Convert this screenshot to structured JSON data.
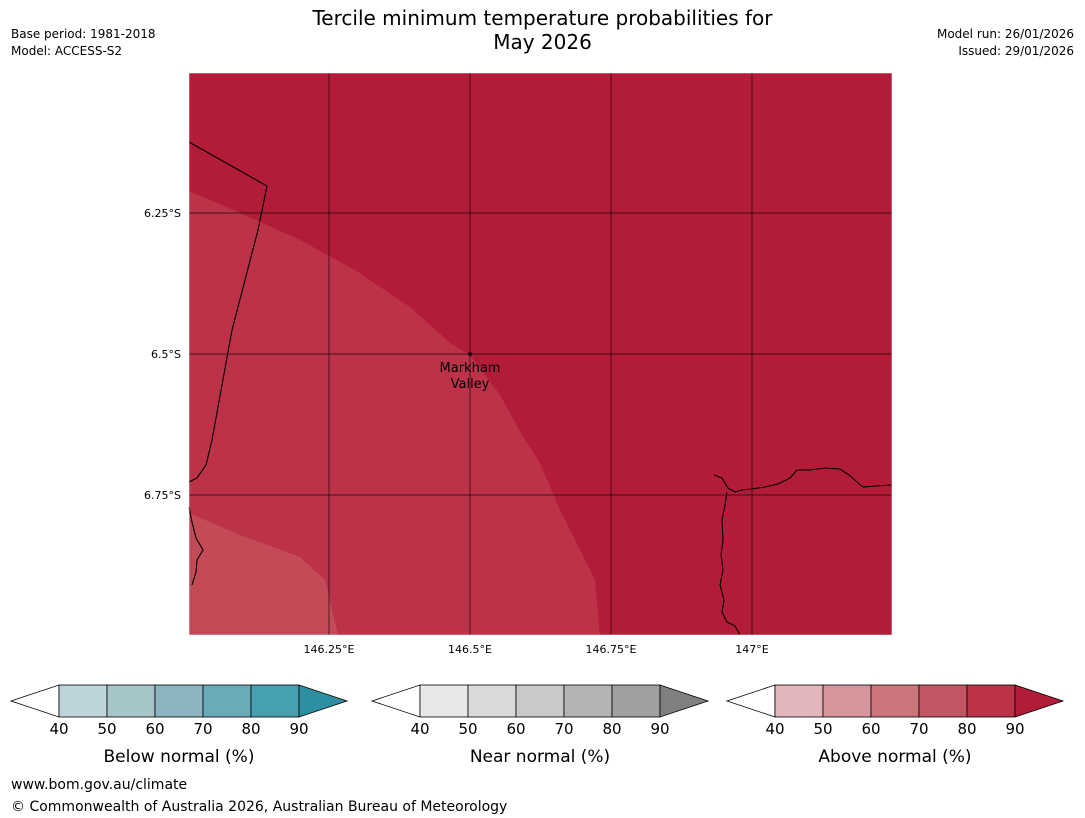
{
  "header": {
    "title_line1": "Tercile minimum temperature probabilities for",
    "title_line2": "May 2026",
    "base_period": "Base period: 1981-2018",
    "model": "Model: ACCESS-S2",
    "model_run": "Model run: 26/01/2026",
    "issued": "Issued: 29/01/2026"
  },
  "map": {
    "lat_labels": [
      "6.25°S",
      "6.5°S",
      "6.75°S"
    ],
    "lon_labels": [
      "146.25°E",
      "146.5°E",
      "146.75°E",
      "147°E"
    ],
    "place_line1": "Markham",
    "place_line2": "Valley",
    "colors": {
      "above_90": "#b21c38",
      "above_80": "#bc3249",
      "above_70": "#c34b58",
      "grid": "#000000",
      "coast": "#000000"
    }
  },
  "legends": [
    {
      "title": "Below normal (%)",
      "ticks": [
        "40",
        "50",
        "60",
        "70",
        "80",
        "90"
      ],
      "colors": [
        "#ffffff",
        "#bdd5da",
        "#a6c5c9",
        "#8ab5c1",
        "#6aabb8",
        "#46a0b0",
        "#2e8fa2"
      ]
    },
    {
      "title": "Near normal (%)",
      "ticks": [
        "40",
        "50",
        "60",
        "70",
        "80",
        "90"
      ],
      "colors": [
        "#ffffff",
        "#e8e8e8",
        "#d9d9d9",
        "#c9c9c9",
        "#b4b4b4",
        "#a0a0a0",
        "#808080"
      ]
    },
    {
      "title": "Above normal (%)",
      "ticks": [
        "40",
        "50",
        "60",
        "70",
        "80",
        "90"
      ],
      "colors": [
        "#ffffff",
        "#e3b6bc",
        "#d7959c",
        "#cc747b",
        "#c35565",
        "#bc3249",
        "#b21c38"
      ]
    }
  ],
  "footer": {
    "url": "www.bom.gov.au/climate",
    "copyright": "© Commonwealth of Australia 2026, Australian Bureau of Meteorology"
  }
}
